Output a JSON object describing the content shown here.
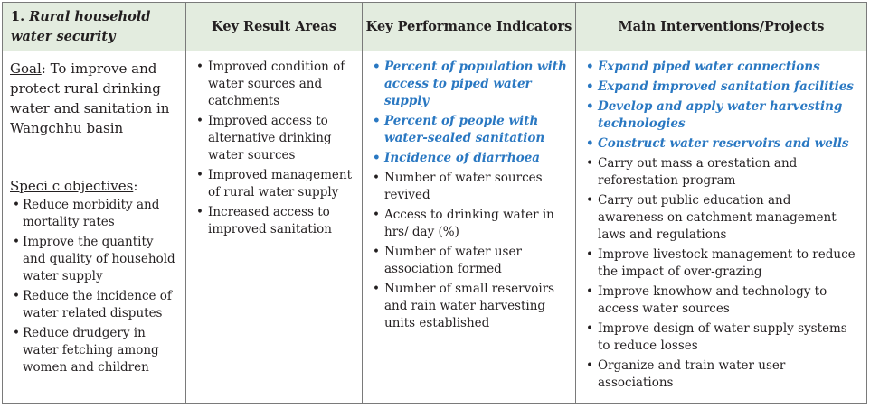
{
  "header": {
    "section_number": "1.",
    "section_title": "Rural household water security",
    "col2": "Key Result Areas",
    "col3": "Key Performance Indicators",
    "col4": "Main Interventions/Projects"
  },
  "goal": {
    "label": "Goal",
    "text": ": To improve and protect rural drinking water and sanitation in Wangchhu basin"
  },
  "specific_objectives": {
    "label": "Speci  c objectives",
    "colon": ":",
    "items": [
      "Reduce morbidity and mortality rates",
      "Improve the quantity and quality of household water supply",
      "Reduce the incidence of water related disputes",
      "Reduce drudgery in water fetching among women and children"
    ]
  },
  "key_result_areas": [
    "Improved condition of water sources and catchments",
    "Improved access to alternative drinking water sources",
    "Improved management of rural water supply",
    "Increased access to improved sanitation"
  ],
  "kpis": [
    {
      "text": "Percent of population with access to piped water supply",
      "highlight": true
    },
    {
      "text": "Percent of people with water-sealed sanitation",
      "highlight": true
    },
    {
      "text": "Incidence of diarrhoea",
      "highlight": true
    },
    {
      "text": "Number of water sources revived",
      "highlight": false
    },
    {
      "text": "Access to drinking water in hrs/ day (%)",
      "highlight": false
    },
    {
      "text": "Number of water user association formed",
      "highlight": false
    },
    {
      "text": "Number of small reservoirs and rain water harvesting units established",
      "highlight": false
    }
  ],
  "interventions": [
    {
      "text": "Expand piped water connections",
      "highlight": true
    },
    {
      "text": "Expand improved sanitation facilities",
      "highlight": true
    },
    {
      "text": "Develop and apply water harvesting technologies",
      "highlight": true
    },
    {
      "text": "Construct water reservoirs and wells",
      "highlight": true
    },
    {
      "text": "Carry out mass a  orestation and reforestation program",
      "highlight": false
    },
    {
      "text": "Carry out public education and awareness on catchment management laws and regulations",
      "highlight": false
    },
    {
      "text": "Improve livestock management to reduce the impact of over-grazing",
      "highlight": false
    },
    {
      "text": "Improve knowhow and technology to access water sources",
      "highlight": false
    },
    {
      "text": "Improve design of water supply systems to reduce losses",
      "highlight": false
    },
    {
      "text": "Organize and train water user associations",
      "highlight": false
    }
  ],
  "colors": {
    "header_bg": "#e3ecdf",
    "highlight": "#2a78c2",
    "border": "#7a7a7a"
  }
}
